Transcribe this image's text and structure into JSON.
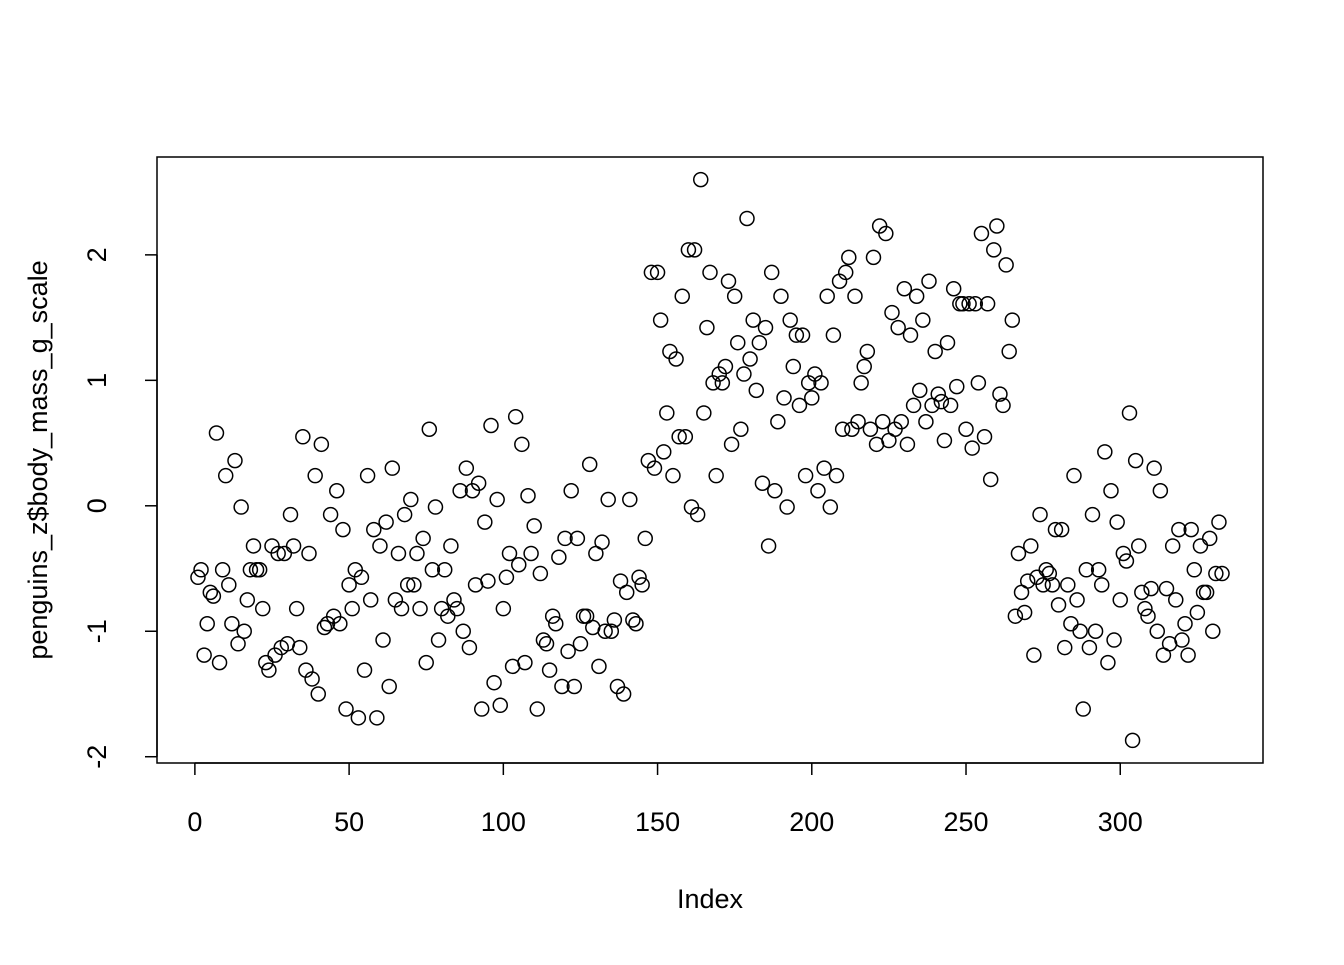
{
  "chart_data": {
    "type": "scatter",
    "x_label": "Index",
    "y_label": "penguins_z$body_mass_g_scale",
    "color": "#000000",
    "xlim": [
      -12.28,
      346.28
    ],
    "ylim": [
      -2.05,
      2.78
    ],
    "xticks": [
      0,
      50,
      100,
      150,
      200,
      250,
      300
    ],
    "yticks": [
      -2,
      -1,
      0,
      1,
      2
    ],
    "x": [
      1,
      2,
      3,
      4,
      5,
      6,
      7,
      8,
      9,
      10,
      11,
      12,
      13,
      14,
      15,
      16,
      17,
      18,
      19,
      20,
      21,
      22,
      23,
      24,
      25,
      26,
      27,
      28,
      29,
      30,
      31,
      32,
      33,
      34,
      35,
      36,
      37,
      38,
      39,
      40,
      41,
      42,
      43,
      44,
      45,
      46,
      47,
      48,
      49,
      50,
      51,
      52,
      53,
      54,
      55,
      56,
      57,
      58,
      59,
      60,
      61,
      62,
      63,
      64,
      65,
      66,
      67,
      68,
      69,
      70,
      71,
      72,
      73,
      74,
      75,
      76,
      77,
      78,
      79,
      80,
      81,
      82,
      83,
      84,
      85,
      86,
      87,
      88,
      89,
      90,
      91,
      92,
      93,
      94,
      95,
      96,
      97,
      98,
      99,
      100,
      101,
      102,
      103,
      104,
      105,
      106,
      107,
      108,
      109,
      110,
      111,
      112,
      113,
      114,
      115,
      116,
      117,
      118,
      119,
      120,
      121,
      122,
      123,
      124,
      125,
      126,
      127,
      128,
      129,
      130,
      131,
      132,
      133,
      134,
      135,
      136,
      137,
      138,
      139,
      140,
      141,
      142,
      143,
      144,
      145,
      146,
      147,
      148,
      149,
      150,
      151,
      152,
      153,
      154,
      155,
      156,
      157,
      158,
      159,
      160,
      161,
      162,
      163,
      164,
      165,
      166,
      167,
      168,
      169,
      170,
      171,
      172,
      173,
      174,
      175,
      176,
      177,
      178,
      179,
      180,
      181,
      182,
      183,
      184,
      185,
      186,
      187,
      188,
      189,
      190,
      191,
      192,
      193,
      194,
      195,
      196,
      197,
      198,
      199,
      200,
      201,
      202,
      203,
      204,
      205,
      206,
      207,
      208,
      209,
      210,
      211,
      212,
      213,
      214,
      215,
      216,
      217,
      218,
      219,
      220,
      221,
      222,
      223,
      224,
      225,
      226,
      227,
      228,
      229,
      230,
      231,
      232,
      233,
      234,
      235,
      236,
      237,
      238,
      239,
      240,
      241,
      242,
      243,
      244,
      245,
      246,
      247,
      248,
      249,
      250,
      251,
      252,
      253,
      254,
      255,
      256,
      257,
      258,
      259,
      260,
      261,
      262,
      263,
      264,
      265,
      266,
      267,
      268,
      269,
      270,
      271,
      272,
      273,
      274,
      275,
      276,
      277,
      278,
      279,
      280,
      281,
      282,
      283,
      284,
      285,
      286,
      287,
      288,
      289,
      290,
      291,
      292,
      293,
      294,
      295,
      296,
      297,
      298,
      299,
      300,
      301,
      302,
      303,
      304,
      305,
      306,
      307,
      308,
      309,
      310,
      311,
      312,
      313,
      314,
      315,
      316,
      317,
      318,
      319,
      320,
      321,
      322,
      323,
      324,
      325,
      326,
      327,
      328,
      329,
      330,
      331,
      332,
      333
    ],
    "values": [
      -0.57,
      -0.51,
      -1.19,
      -0.94,
      -0.69,
      -0.72,
      0.58,
      -1.25,
      -0.51,
      0.24,
      -0.63,
      -0.94,
      0.36,
      -1.1,
      -0.01,
      -1.0,
      -0.75,
      -0.51,
      -0.32,
      -0.51,
      -0.51,
      -0.82,
      -1.25,
      -1.31,
      -0.32,
      -1.19,
      -0.38,
      -1.13,
      -0.38,
      -1.1,
      -0.07,
      -0.32,
      -0.82,
      -1.13,
      0.55,
      -1.31,
      -0.38,
      -1.38,
      0.24,
      -1.5,
      0.49,
      -0.97,
      -0.94,
      -0.07,
      -0.88,
      0.12,
      -0.94,
      -0.19,
      -1.62,
      -0.63,
      -0.82,
      -0.51,
      -1.69,
      -0.57,
      -1.31,
      0.24,
      -0.75,
      -0.19,
      -1.69,
      -0.32,
      -1.07,
      -0.13,
      -1.44,
      0.3,
      -0.75,
      -0.38,
      -0.82,
      -0.07,
      -0.63,
      0.05,
      -0.63,
      -0.38,
      -0.82,
      -0.26,
      -1.25,
      0.61,
      -0.51,
      -0.01,
      -1.07,
      -0.82,
      -0.51,
      -0.88,
      -0.32,
      -0.75,
      -0.82,
      0.12,
      -1.0,
      0.3,
      -1.13,
      0.12,
      -0.63,
      0.18,
      -1.62,
      -0.13,
      -0.6,
      0.64,
      -1.41,
      0.05,
      -1.59,
      -0.82,
      -0.57,
      -0.38,
      -1.28,
      0.71,
      -0.47,
      0.49,
      -1.25,
      0.08,
      -0.38,
      -0.16,
      -1.62,
      -0.54,
      -1.07,
      -1.1,
      -1.31,
      -0.88,
      -0.94,
      -0.41,
      -1.44,
      -0.26,
      -1.16,
      0.12,
      -1.44,
      -0.26,
      -1.1,
      -0.88,
      -0.88,
      0.33,
      -0.97,
      -0.38,
      -1.28,
      -0.29,
      -1.0,
      0.05,
      -1.0,
      -0.91,
      -1.44,
      -0.6,
      -1.5,
      -0.69,
      0.05,
      -0.91,
      -0.94,
      -0.57,
      -0.63,
      -0.26,
      0.36,
      1.86,
      0.3,
      1.86,
      1.48,
      0.43,
      0.74,
      1.23,
      0.24,
      1.17,
      0.55,
      1.67,
      0.55,
      2.04,
      -0.01,
      2.04,
      -0.07,
      2.6,
      0.74,
      1.42,
      1.86,
      0.98,
      0.24,
      1.05,
      0.98,
      1.11,
      1.79,
      0.49,
      1.67,
      1.3,
      0.61,
      1.05,
      2.29,
      1.17,
      1.48,
      0.92,
      1.3,
      0.18,
      1.42,
      -0.32,
      1.86,
      0.12,
      0.67,
      1.67,
      0.86,
      -0.01,
      1.48,
      1.11,
      1.36,
      0.8,
      1.36,
      0.24,
      0.98,
      0.86,
      1.05,
      0.12,
      0.98,
      0.3,
      1.67,
      -0.01,
      1.36,
      0.24,
      1.79,
      0.61,
      1.86,
      1.98,
      0.61,
      1.67,
      0.67,
      0.98,
      1.11,
      1.23,
      0.61,
      1.98,
      0.49,
      2.23,
      0.67,
      2.17,
      0.52,
      1.54,
      0.61,
      1.42,
      0.67,
      1.73,
      0.49,
      1.36,
      0.8,
      1.67,
      0.92,
      1.48,
      0.67,
      1.79,
      0.8,
      1.23,
      0.89,
      0.83,
      0.52,
      1.3,
      0.8,
      1.73,
      0.95,
      1.61,
      1.61,
      0.61,
      1.61,
      0.46,
      1.61,
      0.98,
      2.17,
      0.55,
      1.61,
      0.21,
      2.04,
      2.23,
      0.89,
      0.8,
      1.92,
      1.23,
      1.48,
      -0.88,
      -0.38,
      -0.69,
      -0.85,
      -0.6,
      -0.32,
      -1.19,
      -0.57,
      -0.07,
      -0.63,
      -0.51,
      -0.54,
      -0.63,
      -0.19,
      -0.79,
      -0.19,
      -1.13,
      -0.63,
      -0.94,
      0.24,
      -0.75,
      -1.0,
      -1.62,
      -0.51,
      -1.13,
      -0.07,
      -1.0,
      -0.51,
      -0.63,
      0.43,
      -1.25,
      0.12,
      -1.07,
      -0.13,
      -0.75,
      -0.38,
      -0.44,
      0.74,
      -1.87,
      0.36,
      -0.32,
      -0.69,
      -0.82,
      -0.88,
      -0.66,
      0.3,
      -1.0,
      0.12,
      -1.19,
      -0.66,
      -1.1,
      -0.32,
      -0.75,
      -0.19,
      -1.07,
      -0.94,
      -1.19,
      -0.19,
      -0.51,
      -0.85,
      -0.32,
      -0.69,
      -0.69,
      -0.26,
      -1.0,
      -0.54,
      -0.13,
      -0.54
    ]
  }
}
